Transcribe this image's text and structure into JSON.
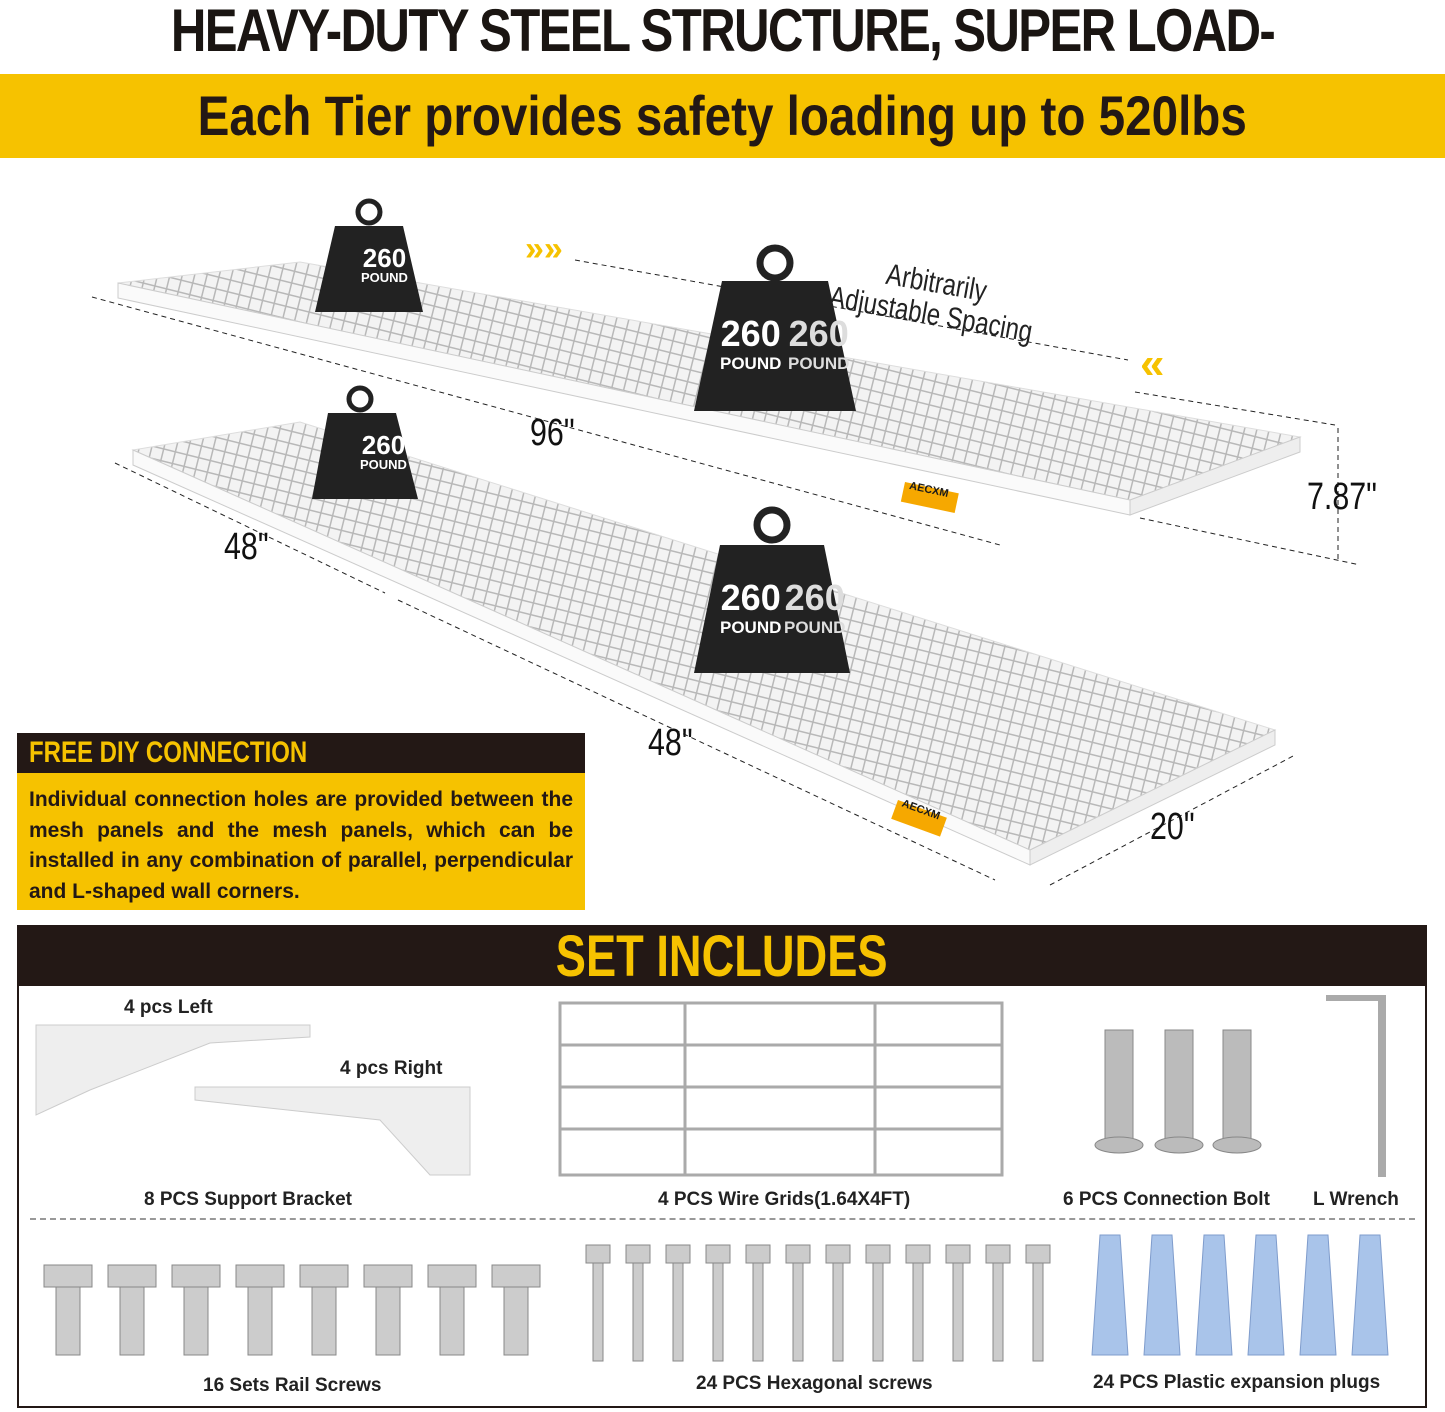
{
  "header": {
    "title": "HEAVY-DUTY STEEL STRUCTURE, SUPER LOAD-BEARING",
    "subtitle": "Each Tier provides safety loading up to 520lbs"
  },
  "illustration": {
    "weights": [
      {
        "value": "260",
        "unit": "POUND"
      },
      {
        "value": "260",
        "unit": "POUND"
      },
      {
        "value": "260",
        "unit": "POUND"
      },
      {
        "value": "260",
        "unit": "POUND"
      }
    ],
    "dimensions": {
      "length": "96\"",
      "section_left": "48\"",
      "section_right": "48\"",
      "depth": "20\"",
      "height": "7.87\""
    },
    "spacing_line1": "Arbitrarily",
    "spacing_line2": "Adjustable Spacing",
    "brand": "AECXM"
  },
  "diy": {
    "title": "FREE DIY CONNECTION",
    "text": "Individual connection holes are provided between the mesh panels and the mesh panels, which can be installed in any combination of parallel, perpendicular and L-shaped wall corners."
  },
  "set": {
    "title": "SET INCLUDES",
    "left_bracket": "4 pcs Left",
    "right_bracket": "4 pcs Right",
    "items": [
      "8 PCS Support Bracket",
      "4 PCS Wire Grids(1.64X4FT)",
      "6 PCS Connection Bolt",
      "L Wrench",
      "16 Sets Rail Screws",
      "24 PCS Hexagonal screws",
      "24 PCS Plastic expansion plugs"
    ]
  },
  "colors": {
    "accent": "#f6c200",
    "dark": "#231815",
    "plug": "#a9c4ea"
  }
}
